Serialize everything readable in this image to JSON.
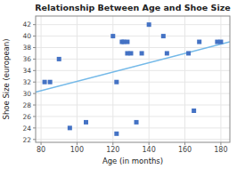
{
  "chart_data": {
    "type": "scatter",
    "title": "Relationship Between Age and Shoe Size",
    "xlabel": "Age (in months)",
    "ylabel": "Shoe Size (european)",
    "series": [
      {
        "type": "scatter",
        "color": "#4472c4",
        "marker": "square",
        "x": [
          82,
          85,
          90,
          96,
          105,
          120,
          122,
          122,
          125,
          126,
          128,
          128,
          130,
          133,
          136,
          140,
          148,
          150,
          162,
          165,
          168,
          178,
          180
        ],
        "values": [
          32,
          32,
          36,
          24,
          25,
          40,
          32,
          23,
          39,
          39,
          39,
          37,
          37,
          25,
          37,
          42,
          40,
          37,
          37,
          27,
          39,
          39,
          39
        ]
      },
      {
        "type": "line",
        "color": "#74b9e8",
        "line_style": "solid",
        "x": [
          77,
          185
        ],
        "values": [
          30.249,
          39.013
        ]
      }
    ],
    "xlim": [
      77,
      185
    ],
    "ylim": [
      21.5,
      43.5
    ],
    "xticks": [
      80,
      100,
      120,
      140,
      160,
      180
    ],
    "yticks": [
      22,
      24,
      26,
      28,
      30,
      32,
      34,
      36,
      38,
      40,
      42
    ],
    "grid": true
  }
}
